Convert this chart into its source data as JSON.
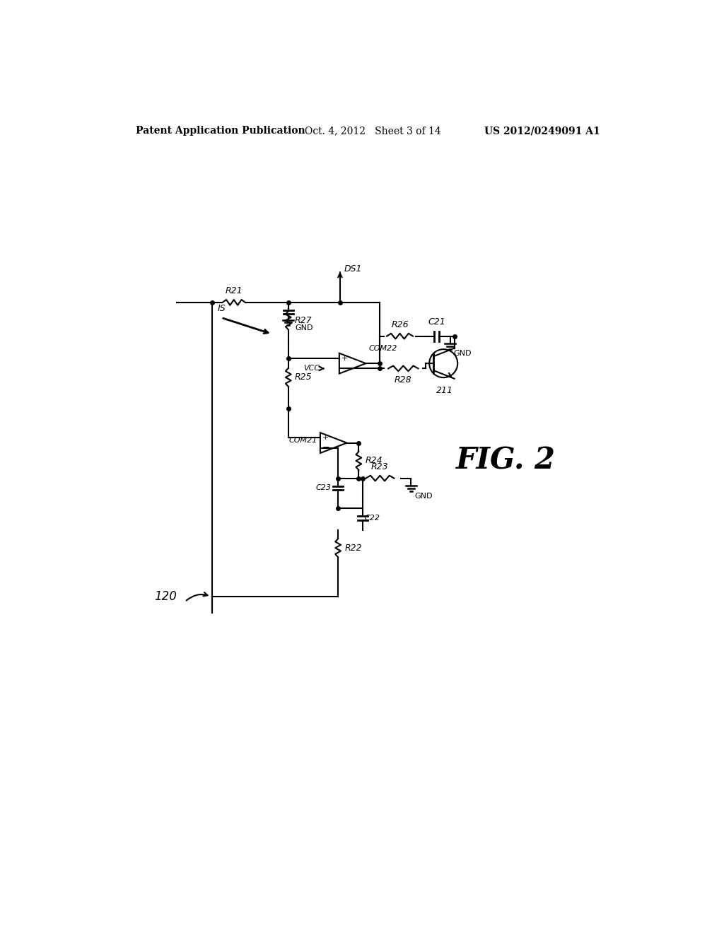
{
  "bg_color": "#ffffff",
  "line_color": "#000000",
  "header_left": "Patent Application Publication",
  "header_center": "Oct. 4, 2012   Sheet 3 of 14",
  "header_right": "US 2012/0249091 A1",
  "fig_label": "FIG. 2",
  "circuit_label": "120"
}
